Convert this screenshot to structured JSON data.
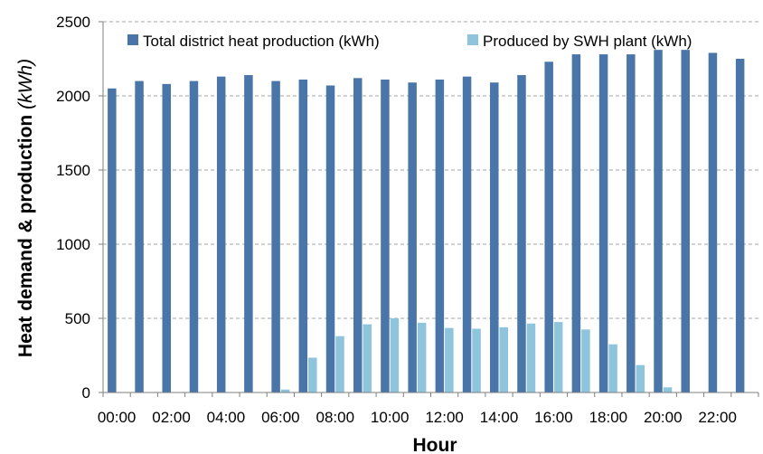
{
  "chart_data": {
    "type": "bar",
    "categories": [
      "00:00",
      "01:00",
      "02:00",
      "03:00",
      "04:00",
      "05:00",
      "06:00",
      "07:00",
      "08:00",
      "09:00",
      "10:00",
      "11:00",
      "12:00",
      "13:00",
      "14:00",
      "15:00",
      "16:00",
      "17:00",
      "18:00",
      "19:00",
      "20:00",
      "21:00",
      "22:00",
      "23:00"
    ],
    "tick_labels": [
      "00:00",
      "02:00",
      "04:00",
      "06:00",
      "08:00",
      "10:00",
      "12:00",
      "14:00",
      "16:00",
      "18:00",
      "20:00",
      "22:00"
    ],
    "series": [
      {
        "name": "Total district heat production (kWh)",
        "color": "#4a75a8",
        "values": [
          2050,
          2100,
          2080,
          2100,
          2130,
          2140,
          2100,
          2110,
          2070,
          2120,
          2110,
          2090,
          2110,
          2130,
          2090,
          2140,
          2230,
          2280,
          2280,
          2280,
          2310,
          2310,
          2290,
          2250
        ]
      },
      {
        "name": "Produced by SWH plant (kWh)",
        "color": "#8ec5dc",
        "values": [
          0,
          0,
          0,
          0,
          0,
          0,
          20,
          235,
          380,
          460,
          500,
          470,
          435,
          430,
          440,
          465,
          475,
          425,
          325,
          185,
          35,
          0,
          0,
          0
        ]
      }
    ],
    "xlabel": "Hour",
    "ylabel_main": "Heat demand & production ",
    "ylabel_unit": "(kWh)",
    "ylim": [
      0,
      2500
    ],
    "yticks": [
      0,
      500,
      1000,
      1500,
      2000,
      2500
    ],
    "grid": true,
    "legend_position": "top"
  }
}
